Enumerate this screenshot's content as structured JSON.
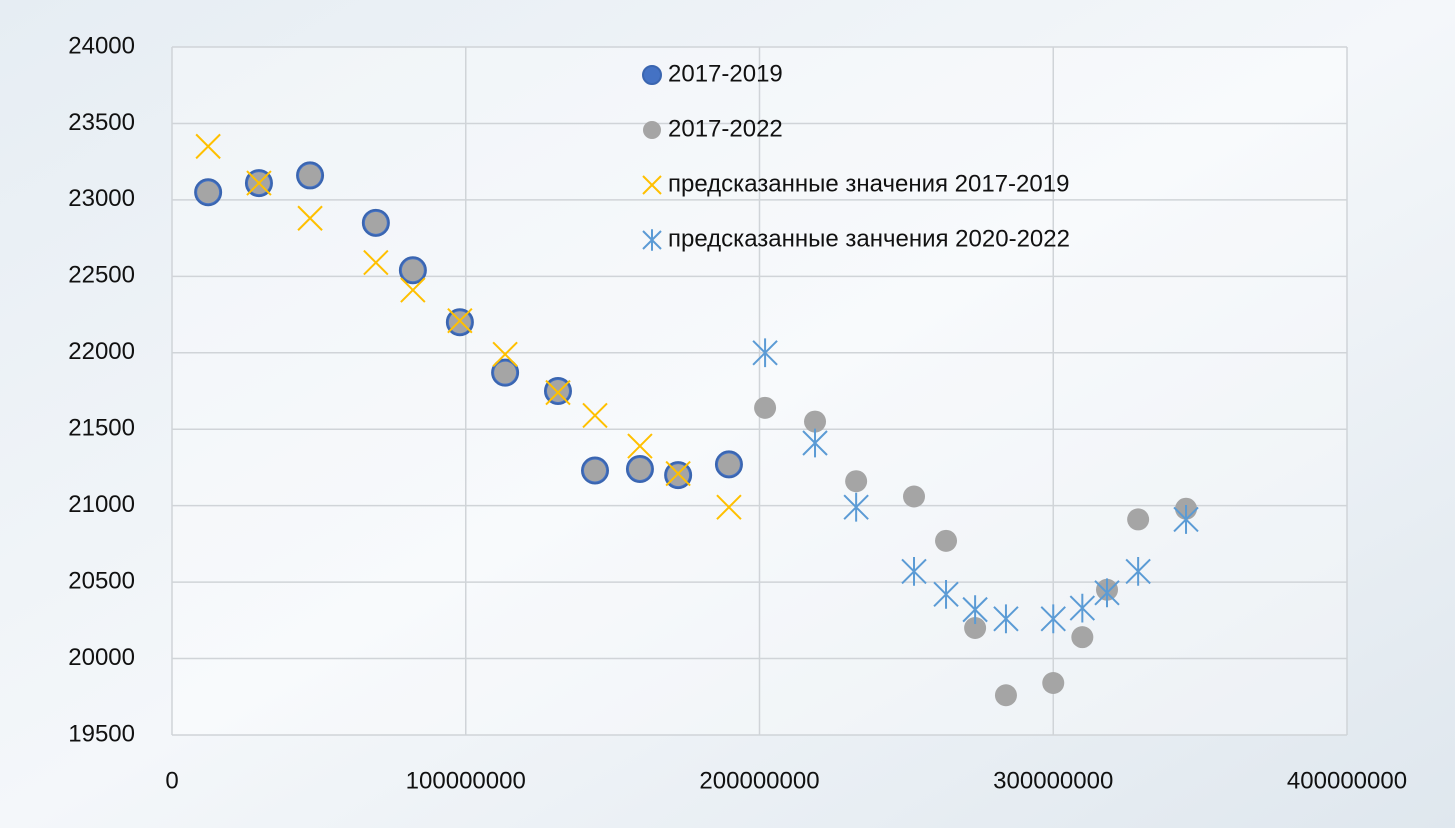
{
  "chart_data": {
    "type": "scatter",
    "xlim": [
      0,
      400000000
    ],
    "xticks": [
      0,
      100000000,
      200000000,
      300000000,
      400000000
    ],
    "ylim": [
      19500,
      24000
    ],
    "yticks": [
      19500,
      20000,
      20500,
      21000,
      21500,
      22000,
      22500,
      23000,
      23500,
      24000
    ],
    "grid": true,
    "legend": "top-center",
    "series": [
      {
        "name": "2017-2019",
        "color": "#4472c4",
        "marker": "circle",
        "x": [
          12300000,
          29600000,
          47000000,
          69400000,
          82000000,
          98000000,
          113400000,
          131400000,
          144000000,
          159300000,
          172300000,
          189600000
        ],
        "values": [
          23050,
          23110,
          23160,
          22850,
          22540,
          22200,
          21870,
          21750,
          21230,
          21240,
          21200,
          21270
        ]
      },
      {
        "name": "2017-2022",
        "color": "#a5a5a5",
        "marker": "circle",
        "x": [
          12300000,
          29600000,
          47000000,
          69400000,
          82000000,
          98000000,
          113400000,
          131400000,
          144000000,
          159300000,
          172300000,
          189600000,
          201900000,
          218900000,
          232900000,
          252600000,
          263500000,
          273400000,
          283900000,
          300000000,
          309900000,
          318300000,
          328900000,
          345200000
        ],
        "values": [
          23050,
          23110,
          23160,
          22850,
          22540,
          22200,
          21870,
          21750,
          21230,
          21240,
          21200,
          21270,
          21640,
          21550,
          21160,
          21060,
          20770,
          20200,
          19760,
          19840,
          20140,
          20450,
          20910,
          20980
        ]
      },
      {
        "name": "предсказанные значения 2017-2019",
        "color": "#ffc000",
        "marker": "x",
        "x": [
          12300000,
          29600000,
          47000000,
          69400000,
          82000000,
          98000000,
          113400000,
          131400000,
          144000000,
          159300000,
          172300000,
          189600000
        ],
        "values": [
          23350,
          23110,
          22880,
          22590,
          22410,
          22210,
          21990,
          21740,
          21590,
          21390,
          21210,
          20990
        ]
      },
      {
        "name": "предсказанные занчения 2020-2022",
        "color": "#5b9bd5",
        "marker": "star",
        "x": [
          201900000,
          218900000,
          232900000,
          252600000,
          263500000,
          273400000,
          283900000,
          300000000,
          309900000,
          318300000,
          328900000,
          345200000
        ],
        "values": [
          22000,
          21410,
          20990,
          20570,
          20420,
          20320,
          20260,
          20260,
          20330,
          20430,
          20570,
          20910
        ]
      }
    ]
  }
}
